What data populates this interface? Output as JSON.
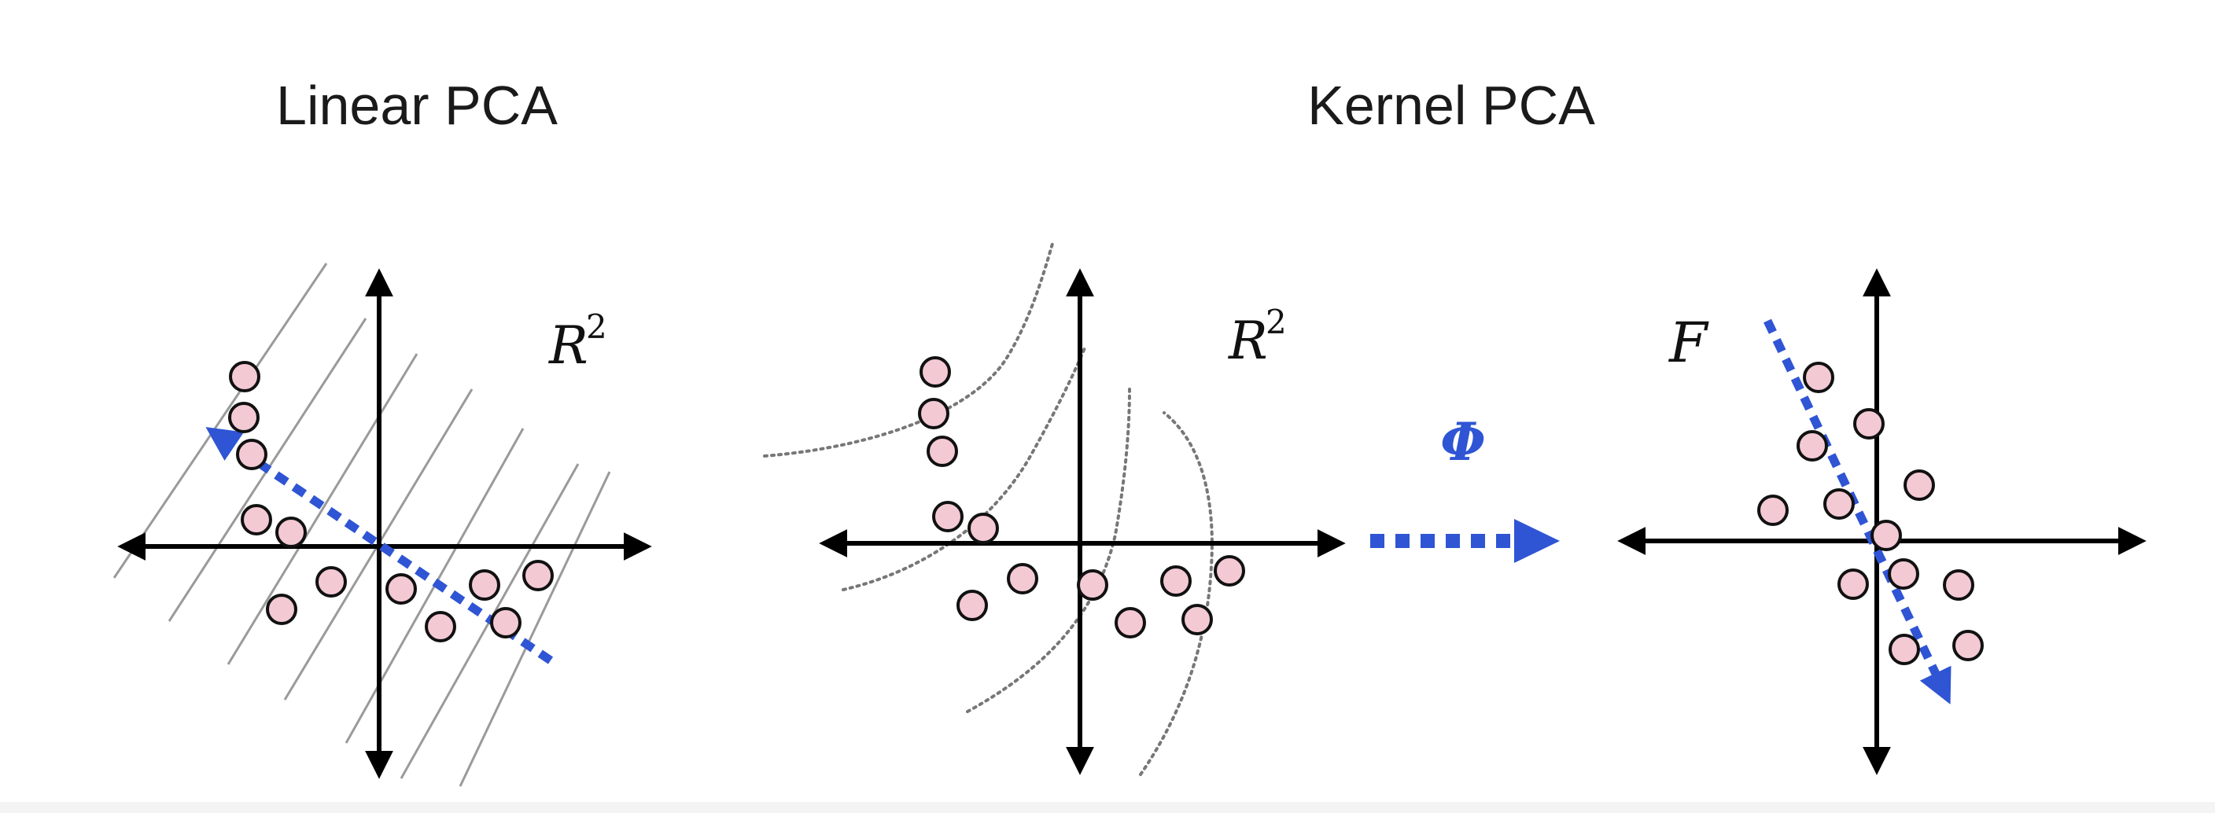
{
  "panels": {
    "linear": {
      "title": "Linear PCA",
      "space_label": "R",
      "space_exp": "2"
    },
    "kernel": {
      "title": "Kernel PCA",
      "input_space_label": "R",
      "input_space_exp": "2",
      "feature_space_label": "F",
      "mapping_label": "Φ"
    }
  },
  "colors": {
    "point_fill": "#f3c9d4",
    "point_stroke": "#111111",
    "principal_component": "#2f55d4",
    "axis": "#000000",
    "guide_lines": "#9a9a9a"
  }
}
